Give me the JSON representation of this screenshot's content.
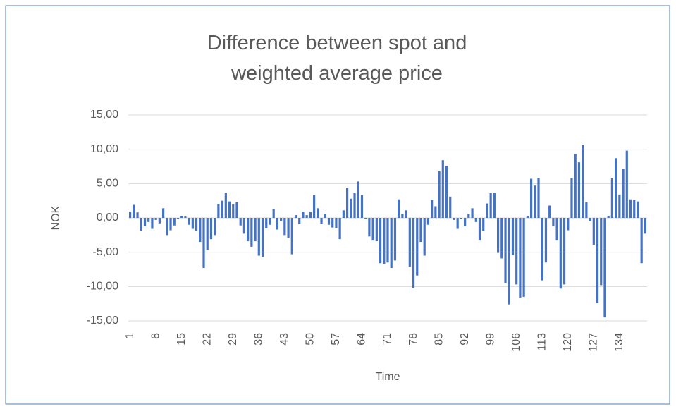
{
  "chart_data": {
    "type": "bar",
    "title": "Difference between spot and weighted average price",
    "xlabel": "Time",
    "ylabel": "NOK",
    "categories": [
      1,
      null,
      null,
      null,
      null,
      null,
      null,
      8,
      null,
      null,
      null,
      null,
      null,
      null,
      15,
      null,
      null,
      null,
      null,
      null,
      null,
      22,
      null,
      null,
      null,
      null,
      null,
      null,
      29,
      null,
      null,
      null,
      null,
      null,
      null,
      36,
      null,
      null,
      null,
      null,
      null,
      null,
      43,
      null,
      null,
      null,
      null,
      null,
      null,
      50,
      null,
      null,
      null,
      null,
      null,
      null,
      57,
      null,
      null,
      null,
      null,
      null,
      null,
      64,
      null,
      null,
      null,
      null,
      null,
      null,
      71,
      null,
      null,
      null,
      null,
      null,
      null,
      78,
      null,
      null,
      null,
      null,
      null,
      null,
      85,
      null,
      null,
      null,
      null,
      null,
      null,
      92,
      null,
      null,
      null,
      null,
      null,
      null,
      99,
      null,
      null,
      null,
      null,
      null,
      null,
      106,
      null,
      null,
      null,
      null,
      null,
      null,
      113,
      null,
      null,
      null,
      null,
      null,
      null,
      120,
      null,
      null,
      null,
      null,
      null,
      null,
      127,
      null,
      null,
      null,
      null,
      null,
      null,
      134,
      null,
      null,
      null,
      null,
      null,
      null,
      null
    ],
    "values": [
      0.9,
      1.9,
      0.8,
      -1.9,
      -1.2,
      -0.6,
      -1.6,
      -0.3,
      -0.8,
      1.4,
      -2.5,
      -1.8,
      -1.1,
      -0.2,
      0.3,
      0.2,
      -1.0,
      -1.6,
      -1.9,
      -3.5,
      -7.3,
      -4.7,
      -3.1,
      -2.5,
      2.0,
      2.5,
      3.7,
      2.4,
      2.0,
      2.3,
      -1.1,
      -2.3,
      -3.4,
      -4.2,
      -3.4,
      -5.5,
      -5.7,
      -1.5,
      -1.0,
      1.3,
      -1.7,
      -0.5,
      -2.5,
      -2.9,
      -5.3,
      0.4,
      -0.9,
      0.9,
      0.4,
      0.9,
      3.3,
      1.4,
      -0.9,
      0.6,
      -1.0,
      -1.4,
      -1.5,
      -3.1,
      1.1,
      4.4,
      2.8,
      3.6,
      5.3,
      3.3,
      -0.2,
      -2.7,
      -3.3,
      -3.4,
      -6.6,
      -6.7,
      -6.5,
      -7.3,
      -6.2,
      2.7,
      0.6,
      1.1,
      -7.1,
      -10.2,
      -8.4,
      -3.5,
      -5.5,
      -1.0,
      2.6,
      1.7,
      6.8,
      8.4,
      7.6,
      3.1,
      -0.3,
      -1.6,
      -0.2,
      -1.2,
      0.6,
      1.4,
      -0.6,
      -3.3,
      -1.9,
      2.1,
      3.6,
      3.6,
      -5.1,
      -5.9,
      -9.5,
      -12.6,
      -5.4,
      -9.7,
      -11.6,
      -11.5,
      0.3,
      5.7,
      4.7,
      5.8,
      -9.1,
      -6.5,
      1.8,
      -1.2,
      -3.3,
      -10.3,
      -9.7,
      -1.8,
      5.8,
      9.3,
      8.1,
      10.6,
      2.3,
      -0.5,
      -3.9,
      -12.4,
      -9.8,
      -14.5,
      0.3,
      5.8,
      8.7,
      3.4,
      7.1,
      9.8,
      2.7,
      2.6,
      2.4,
      -6.6,
      -2.3
    ],
    "color": "#4472c4",
    "ylim": [
      -15,
      15
    ],
    "yticks": [
      {
        "value": -15,
        "label": "-15,00"
      },
      {
        "value": -10,
        "label": "-10,00"
      },
      {
        "value": -5,
        "label": "-5,00"
      },
      {
        "value": 0,
        "label": "0,00"
      },
      {
        "value": 5,
        "label": "5,00"
      },
      {
        "value": 10,
        "label": "10,00"
      },
      {
        "value": 15,
        "label": "15,00"
      }
    ],
    "grid": true
  }
}
